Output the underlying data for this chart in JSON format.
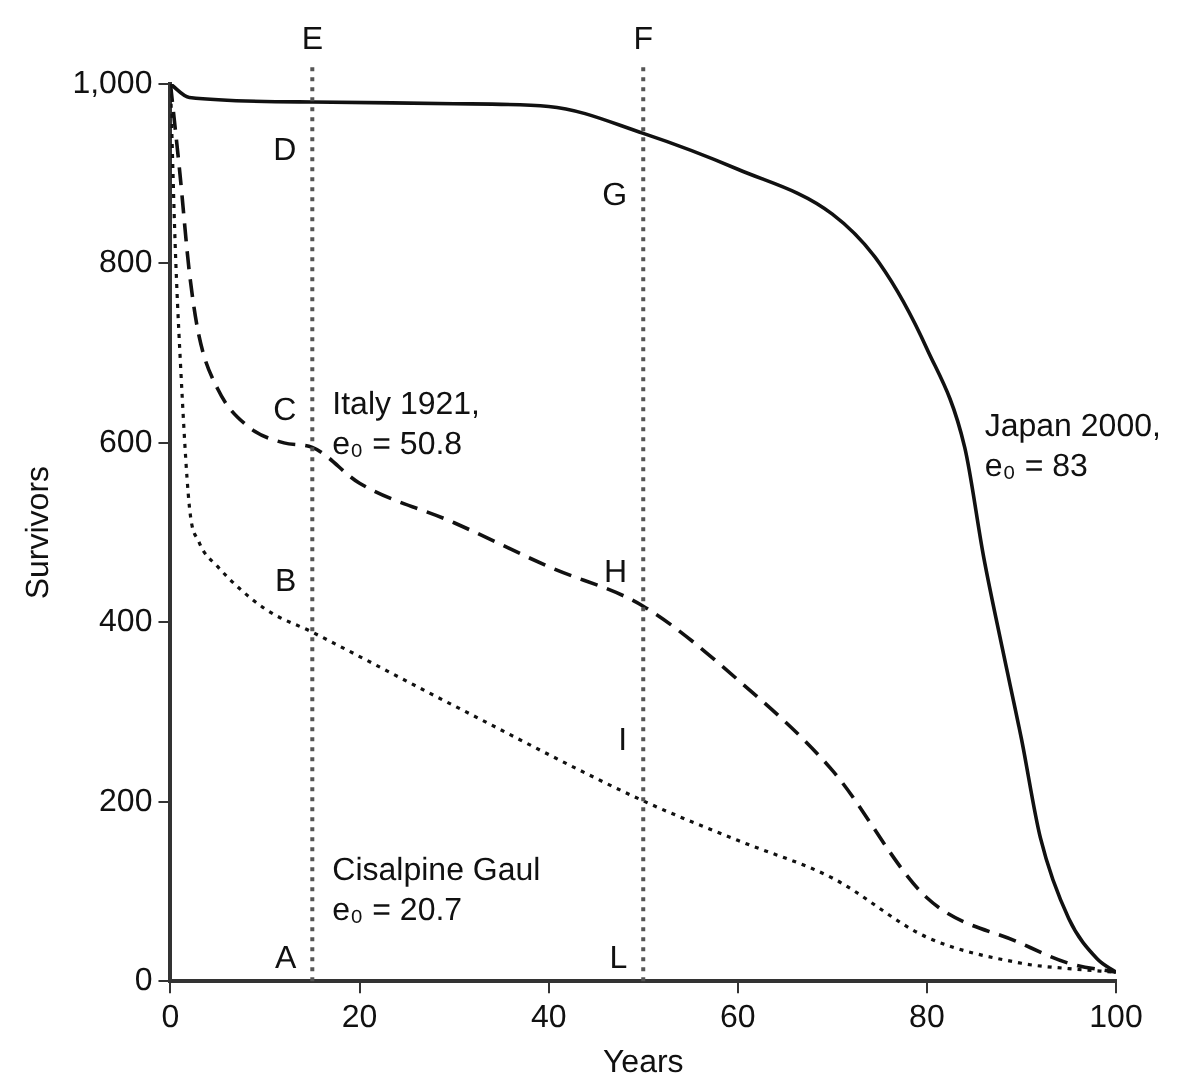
{
  "chart_data": {
    "type": "line",
    "xlabel": "Years",
    "ylabel": "Survivors",
    "xlim": [
      0,
      100
    ],
    "xticks": [
      0,
      20,
      40,
      60,
      80,
      100
    ],
    "ylim": [
      0,
      1000
    ],
    "yticks": [
      0,
      200,
      400,
      600,
      800,
      {
        "value": 1000,
        "label": "1,000"
      }
    ],
    "grid": false,
    "legend": false,
    "marker": "none",
    "series": [
      {
        "color": "#111111",
        "line_style": "solid",
        "x": [
          0,
          2,
          15,
          30,
          40,
          50,
          60,
          70,
          75,
          80,
          84,
          86,
          88,
          90,
          92,
          95,
          98,
          100
        ],
        "values": [
          1000,
          985,
          980,
          978,
          975,
          945,
          905,
          855,
          800,
          705,
          595,
          473,
          370,
          270,
          160,
          70,
          25,
          10
        ]
      },
      {
        "color": "#111111",
        "line_style": "dashed",
        "x": [
          0,
          1,
          2,
          3,
          5,
          8,
          12,
          15,
          20,
          30,
          40,
          50,
          60,
          70,
          80,
          90,
          95,
          100
        ],
        "values": [
          1000,
          900,
          790,
          720,
          660,
          620,
          600,
          595,
          555,
          511,
          462,
          418,
          336,
          235,
          93,
          42,
          20,
          10
        ]
      },
      {
        "color": "#111111",
        "line_style": "dotted",
        "x": [
          0,
          0.5,
          1,
          2,
          3,
          5,
          10,
          15,
          30,
          50,
          60,
          70,
          80,
          90,
          95,
          100
        ],
        "values": [
          1000,
          820,
          700,
          529,
          490,
          462,
          415,
          389,
          307,
          201,
          157,
          115,
          49,
          20,
          14,
          10
        ]
      }
    ],
    "ref_lines": [
      {
        "axis": "x",
        "value": 15,
        "label": "E",
        "line_style": "dotted"
      },
      {
        "axis": "x",
        "value": 50,
        "label": "F",
        "line_style": "dotted"
      }
    ],
    "annotations": [
      {
        "text": "A",
        "x": 15,
        "y": 25
      },
      {
        "text": "B",
        "x": 15,
        "y": 445
      },
      {
        "text": "C",
        "x": 15,
        "y": 635
      },
      {
        "text": "D",
        "x": 15,
        "y": 925
      },
      {
        "text": "G",
        "x": 50,
        "y": 875
      },
      {
        "text": "H",
        "x": 50,
        "y": 455
      },
      {
        "text": "I",
        "x": 50,
        "y": 268
      },
      {
        "text": "L",
        "x": 50,
        "y": 25
      },
      {
        "text": "Italy 1921,\ne₀ = 50.8",
        "x": 15,
        "y": 620
      },
      {
        "text": "Japan 2000,\ne₀ = 83",
        "x": 84,
        "y": 595
      },
      {
        "text": "Cisalpine Gaul\ne₀ = 20.7",
        "x": 15,
        "y": 100
      }
    ]
  }
}
